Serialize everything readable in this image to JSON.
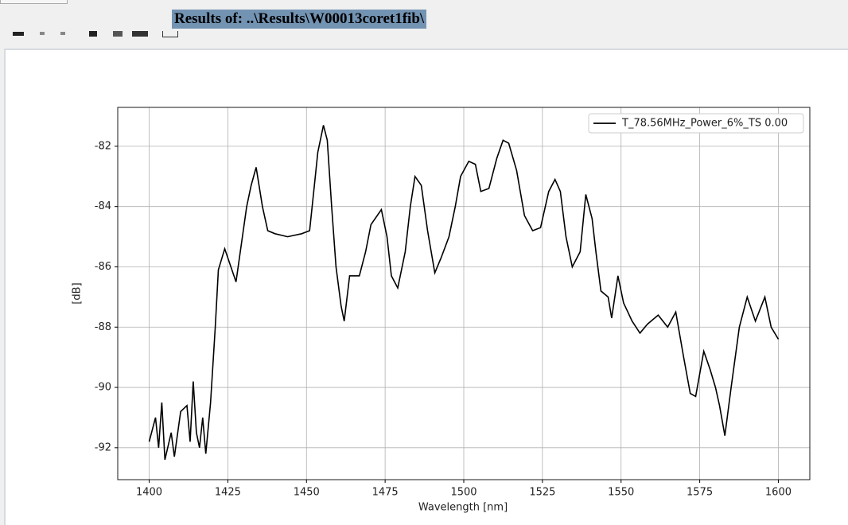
{
  "header": {
    "title": "Results of: ..\\Results\\W00013coret1fib\\"
  },
  "chart_data": {
    "type": "line",
    "x_label": "Wavelength [nm]",
    "y_label": "[dB]",
    "xlim": [
      1390,
      1610
    ],
    "ylim": [
      -93.06,
      -80.71
    ],
    "xticks": [
      1400,
      1425,
      1450,
      1475,
      1500,
      1525,
      1550,
      1575,
      1600
    ],
    "yticks": [
      -92,
      -90,
      -88,
      -86,
      -84,
      -82
    ],
    "grid": true,
    "legend": "upper right",
    "series": [
      {
        "name": "T_78.56MHz_Power_6%_TS 0.00",
        "color": "#000000",
        "x": [
          1400,
          1402,
          1403,
          1404,
          1405,
          1407,
          1408,
          1410,
          1412,
          1413,
          1414,
          1415,
          1416,
          1417,
          1418,
          1419.5,
          1421,
          1422,
          1424,
          1427.6,
          1431,
          1432.4,
          1434,
          1436,
          1437.7,
          1440,
          1444,
          1448.5,
          1451,
          1452.3,
          1453.6,
          1455.4,
          1456.6,
          1458,
          1459.4,
          1461,
          1462,
          1463.7,
          1466.8,
          1468.8,
          1470.5,
          1473.8,
          1475.6,
          1477,
          1479,
          1481.4,
          1483,
          1484.5,
          1486.5,
          1488.5,
          1490.8,
          1492.8,
          1495.3,
          1497.3,
          1499,
          1501.6,
          1503.7,
          1505.4,
          1508,
          1510.5,
          1512.5,
          1514.3,
          1516.8,
          1519.3,
          1521.9,
          1524.4,
          1527,
          1529,
          1530.7,
          1532.5,
          1534.5,
          1537,
          1538.8,
          1540.8,
          1542,
          1543.6,
          1545.9,
          1547,
          1549,
          1550.8,
          1553.5,
          1556,
          1558.4,
          1561.8,
          1564.8,
          1567.4,
          1569.9,
          1572,
          1573.7,
          1576.3,
          1578.3,
          1580,
          1581.3,
          1583,
          1585,
          1587.6,
          1590.1,
          1592.7,
          1595.7,
          1597.7,
          1600
        ],
        "values": [
          -91.8,
          -91.0,
          -92.0,
          -90.5,
          -92.4,
          -91.5,
          -92.3,
          -90.8,
          -90.6,
          -91.8,
          -89.8,
          -91.5,
          -92.0,
          -91.0,
          -92.2,
          -90.5,
          -88.0,
          -86.1,
          -85.4,
          -86.5,
          -84.0,
          -83.3,
          -82.7,
          -84.0,
          -84.8,
          -84.9,
          -85.0,
          -84.9,
          -84.8,
          -83.5,
          -82.2,
          -81.3,
          -81.8,
          -84.0,
          -86.0,
          -87.3,
          -87.8,
          -86.3,
          -86.3,
          -85.5,
          -84.6,
          -84.1,
          -85.0,
          -86.3,
          -86.7,
          -85.5,
          -84.0,
          -83.0,
          -83.3,
          -84.8,
          -86.2,
          -85.7,
          -85.0,
          -84.0,
          -83.0,
          -82.5,
          -82.6,
          -83.5,
          -83.4,
          -82.4,
          -81.8,
          -81.9,
          -82.8,
          -84.3,
          -84.8,
          -84.7,
          -83.5,
          -83.1,
          -83.5,
          -85.0,
          -86.0,
          -85.5,
          -83.6,
          -84.4,
          -85.5,
          -86.8,
          -87.0,
          -87.7,
          -86.3,
          -87.2,
          -87.8,
          -88.2,
          -87.9,
          -87.6,
          -88.0,
          -87.5,
          -89.0,
          -90.2,
          -90.3,
          -88.8,
          -89.4,
          -90.0,
          -90.6,
          -91.6,
          -90.0,
          -88.0,
          -87.0,
          -87.8,
          -87.0,
          -88.0,
          -88.4
        ]
      }
    ]
  }
}
